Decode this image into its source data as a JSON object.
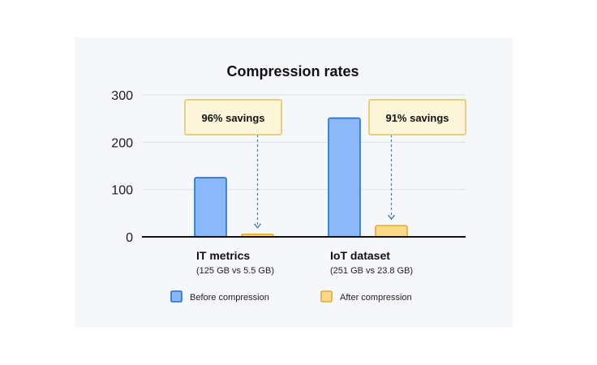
{
  "chart_data": {
    "type": "bar",
    "title": "Compression rates",
    "categories": [
      "IT metrics",
      "IoT dataset"
    ],
    "category_subtitles": [
      "(125 GB vs 5.5 GB)",
      "(251 GB vs 23.8 GB)"
    ],
    "series": [
      {
        "name": "Before compression",
        "values": [
          125,
          251
        ],
        "color": "#8ab8f8",
        "stroke": "#1f6fd6"
      },
      {
        "name": "After compression",
        "values": [
          5.5,
          23.8
        ],
        "color": "#fbd88a",
        "stroke": "#e0ad2c"
      }
    ],
    "annotations": [
      "96% savings",
      "91% savings"
    ],
    "y_ticks": [
      "0",
      "100",
      "200",
      "300"
    ],
    "ylim": [
      0,
      300
    ],
    "grid": true,
    "legend_position": "bottom",
    "colors": {
      "arrow": "#3d7fb5",
      "callout_fill": "#fdf6d8",
      "callout_stroke": "#e6c25a"
    }
  }
}
